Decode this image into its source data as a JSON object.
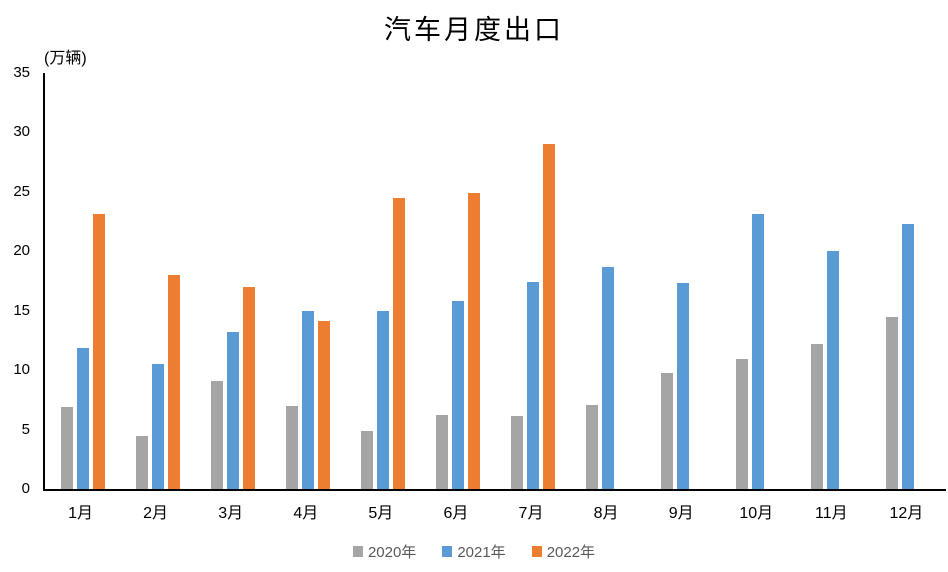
{
  "chart_data": {
    "type": "bar",
    "title": "汽车月度出口",
    "unit_label": "(万辆)",
    "categories": [
      "1月",
      "2月",
      "3月",
      "4月",
      "5月",
      "6月",
      "7月",
      "8月",
      "9月",
      "10月",
      "11月",
      "12月"
    ],
    "series": [
      {
        "name": "2020年",
        "color": "#A5A5A5",
        "values": [
          6.9,
          4.5,
          9.1,
          7.0,
          4.9,
          6.2,
          6.1,
          7.1,
          9.8,
          10.9,
          12.2,
          14.5
        ]
      },
      {
        "name": "2021年",
        "color": "#5B9BD5",
        "values": [
          11.9,
          10.5,
          13.2,
          15.0,
          15.0,
          15.8,
          17.4,
          18.7,
          17.3,
          23.1,
          20.0,
          22.3
        ]
      },
      {
        "name": "2022年",
        "color": "#ED7D31",
        "values": [
          23.1,
          18.0,
          17.0,
          14.1,
          24.5,
          24.9,
          29.0,
          null,
          null,
          null,
          null,
          null
        ]
      }
    ],
    "xlabel": "",
    "ylabel": "(万辆)",
    "ylim": [
      0,
      35
    ],
    "yticks": [
      0,
      5,
      10,
      15,
      20,
      25,
      30,
      35
    ],
    "grid": false,
    "legend_position": "bottom",
    "axis_color": "#000000",
    "legend_text_color": "#595959",
    "background_color": "#FFFFFF"
  }
}
